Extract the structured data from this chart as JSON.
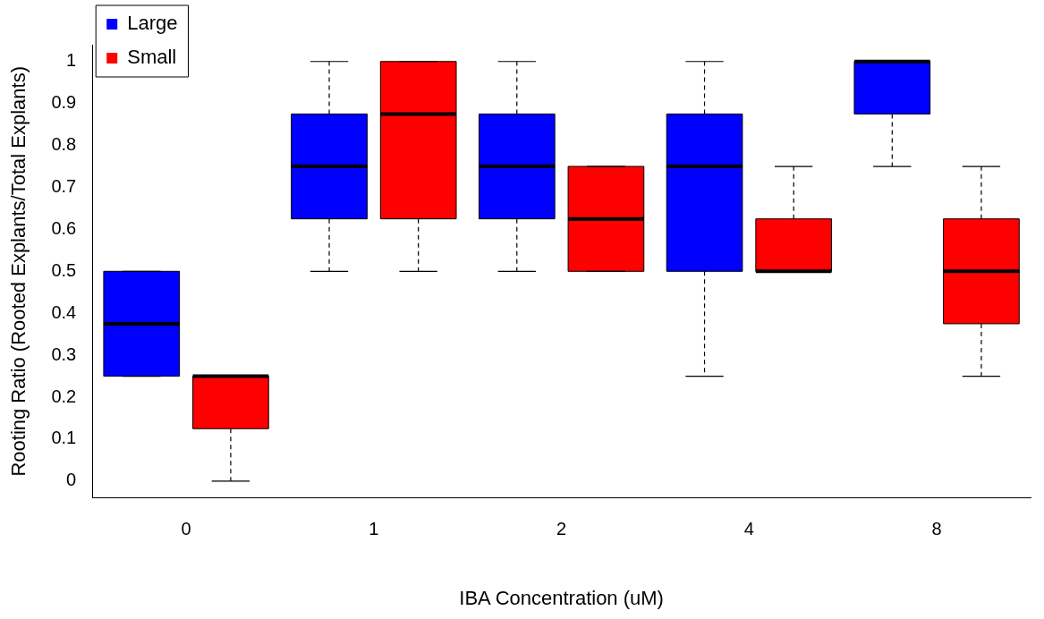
{
  "chart_data": {
    "type": "box",
    "xlabel": "IBA Concentration (uM)",
    "ylabel": "Rooting Ratio (Rooted Explants/Total Explants)",
    "categories": [
      "0",
      "1",
      "2",
      "4",
      "8"
    ],
    "ylim": [
      -0.04,
      1.04
    ],
    "yticks": [
      0,
      0.1,
      0.2,
      0.3,
      0.4,
      0.5,
      0.6,
      0.7,
      0.8,
      0.9,
      1
    ],
    "legend": "top left",
    "grid": false,
    "series": [
      {
        "name": "Large",
        "color": "#0000ff",
        "boxes": [
          {
            "low": 0.25,
            "q1": 0.25,
            "median": 0.375,
            "q3": 0.5,
            "high": 0.5
          },
          {
            "low": 0.5,
            "q1": 0.625,
            "median": 0.75,
            "q3": 0.875,
            "high": 1
          },
          {
            "low": 0.5,
            "q1": 0.625,
            "median": 0.75,
            "q3": 0.875,
            "high": 1
          },
          {
            "low": 0.25,
            "q1": 0.5,
            "median": 0.75,
            "q3": 0.875,
            "high": 1
          },
          {
            "low": 0.75,
            "q1": 0.875,
            "median": 1,
            "q3": 1,
            "high": 1
          }
        ]
      },
      {
        "name": "Small",
        "color": "#ff0000",
        "boxes": [
          {
            "low": 0,
            "q1": 0.125,
            "median": 0.25,
            "q3": 0.25,
            "high": 0.25
          },
          {
            "low": 0.5,
            "q1": 0.625,
            "median": 0.875,
            "q3": 1,
            "high": 1
          },
          {
            "low": 0.5,
            "q1": 0.5,
            "median": 0.625,
            "q3": 0.75,
            "high": 0.75
          },
          {
            "low": 0.5,
            "q1": 0.5,
            "median": 0.5,
            "q3": 0.625,
            "high": 0.75
          },
          {
            "low": 0.25,
            "q1": 0.375,
            "median": 0.5,
            "q3": 0.625,
            "high": 0.75
          }
        ]
      }
    ]
  }
}
